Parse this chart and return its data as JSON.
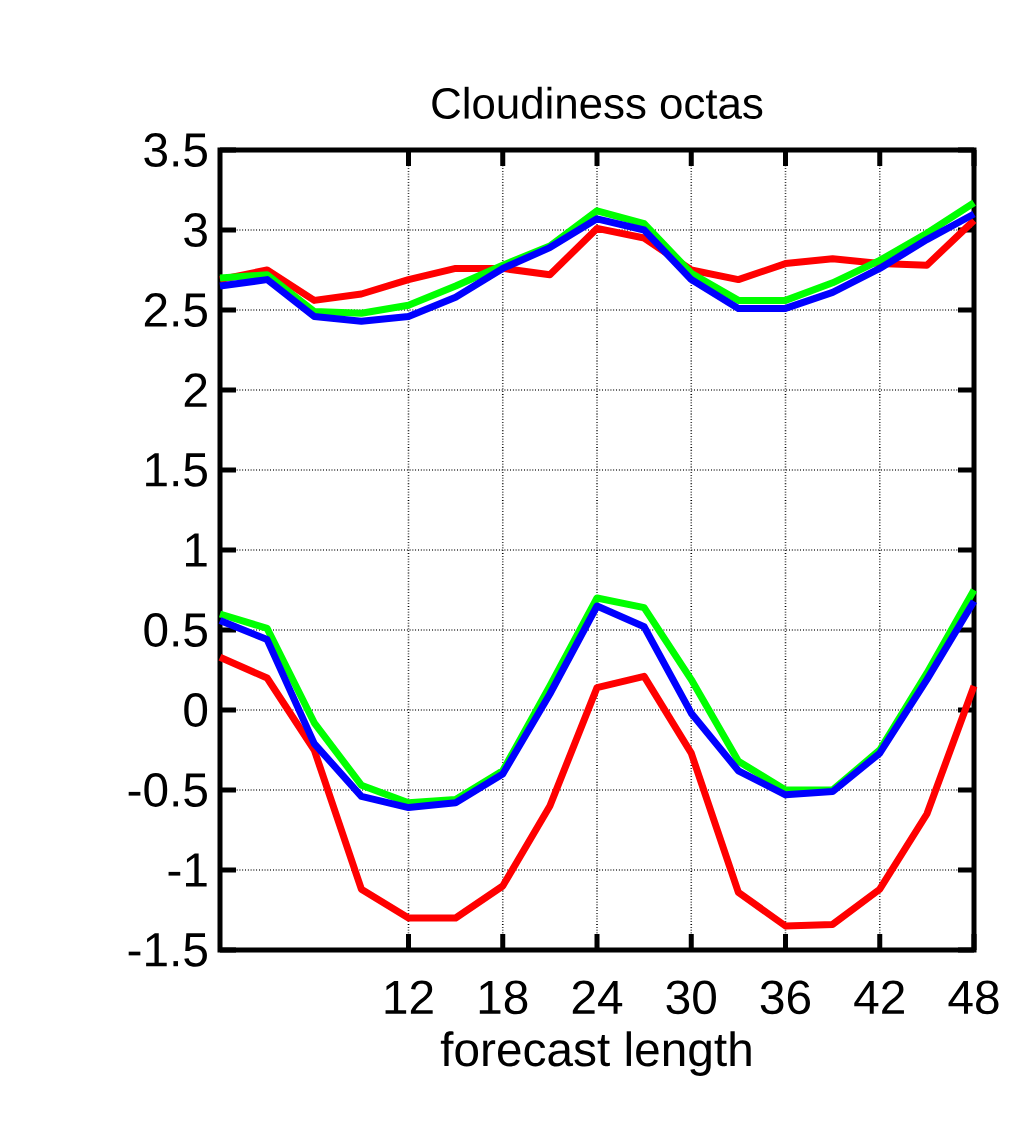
{
  "chart_data": {
    "type": "line",
    "title": "Cloudiness octas",
    "xlabel": "forecast length",
    "x": [
      0,
      3,
      6,
      9,
      12,
      15,
      18,
      21,
      24,
      27,
      30,
      33,
      36,
      39,
      42,
      45,
      48
    ],
    "xlim": [
      0,
      48
    ],
    "xticks": [
      12,
      18,
      24,
      30,
      36,
      42,
      48
    ],
    "ylim": [
      -1.5,
      3.5
    ],
    "yticks": [
      -1.5,
      -1,
      -0.5,
      0,
      0.5,
      1,
      1.5,
      2,
      2.5,
      3,
      3.5
    ],
    "grid": true,
    "marker": "none",
    "line_style": "solid",
    "series": [
      {
        "color": "#ff0000",
        "values": [
          2.69,
          2.75,
          2.56,
          2.6,
          2.69,
          2.76,
          2.76,
          2.72,
          3.01,
          2.95,
          2.75,
          2.69,
          2.79,
          2.82,
          2.79,
          2.78,
          3.06
        ]
      },
      {
        "color": "#00ff00",
        "values": [
          2.7,
          2.72,
          2.49,
          2.48,
          2.53,
          2.65,
          2.78,
          2.9,
          3.12,
          3.04,
          2.73,
          2.56,
          2.56,
          2.67,
          2.81,
          2.98,
          3.17
        ]
      },
      {
        "color": "#0000ff",
        "values": [
          2.65,
          2.69,
          2.46,
          2.43,
          2.46,
          2.58,
          2.76,
          2.89,
          3.07,
          3.0,
          2.69,
          2.51,
          2.51,
          2.61,
          2.76,
          2.94,
          3.1
        ]
      },
      {
        "color": "#ff0000",
        "values": [
          0.33,
          0.2,
          -0.25,
          -1.12,
          -1.3,
          -1.3,
          -1.1,
          -0.6,
          0.14,
          0.21,
          -0.27,
          -1.14,
          -1.35,
          -1.34,
          -1.12,
          -0.65,
          0.15
        ]
      },
      {
        "color": "#00ff00",
        "values": [
          0.6,
          0.51,
          -0.08,
          -0.47,
          -0.58,
          -0.56,
          -0.38,
          0.15,
          0.7,
          0.64,
          0.19,
          -0.32,
          -0.5,
          -0.5,
          -0.25,
          0.23,
          0.75
        ]
      },
      {
        "color": "#0000ff",
        "values": [
          0.56,
          0.44,
          -0.21,
          -0.54,
          -0.61,
          -0.58,
          -0.4,
          0.1,
          0.65,
          0.52,
          -0.02,
          -0.38,
          -0.53,
          -0.51,
          -0.27,
          0.19,
          0.68
        ]
      }
    ]
  }
}
